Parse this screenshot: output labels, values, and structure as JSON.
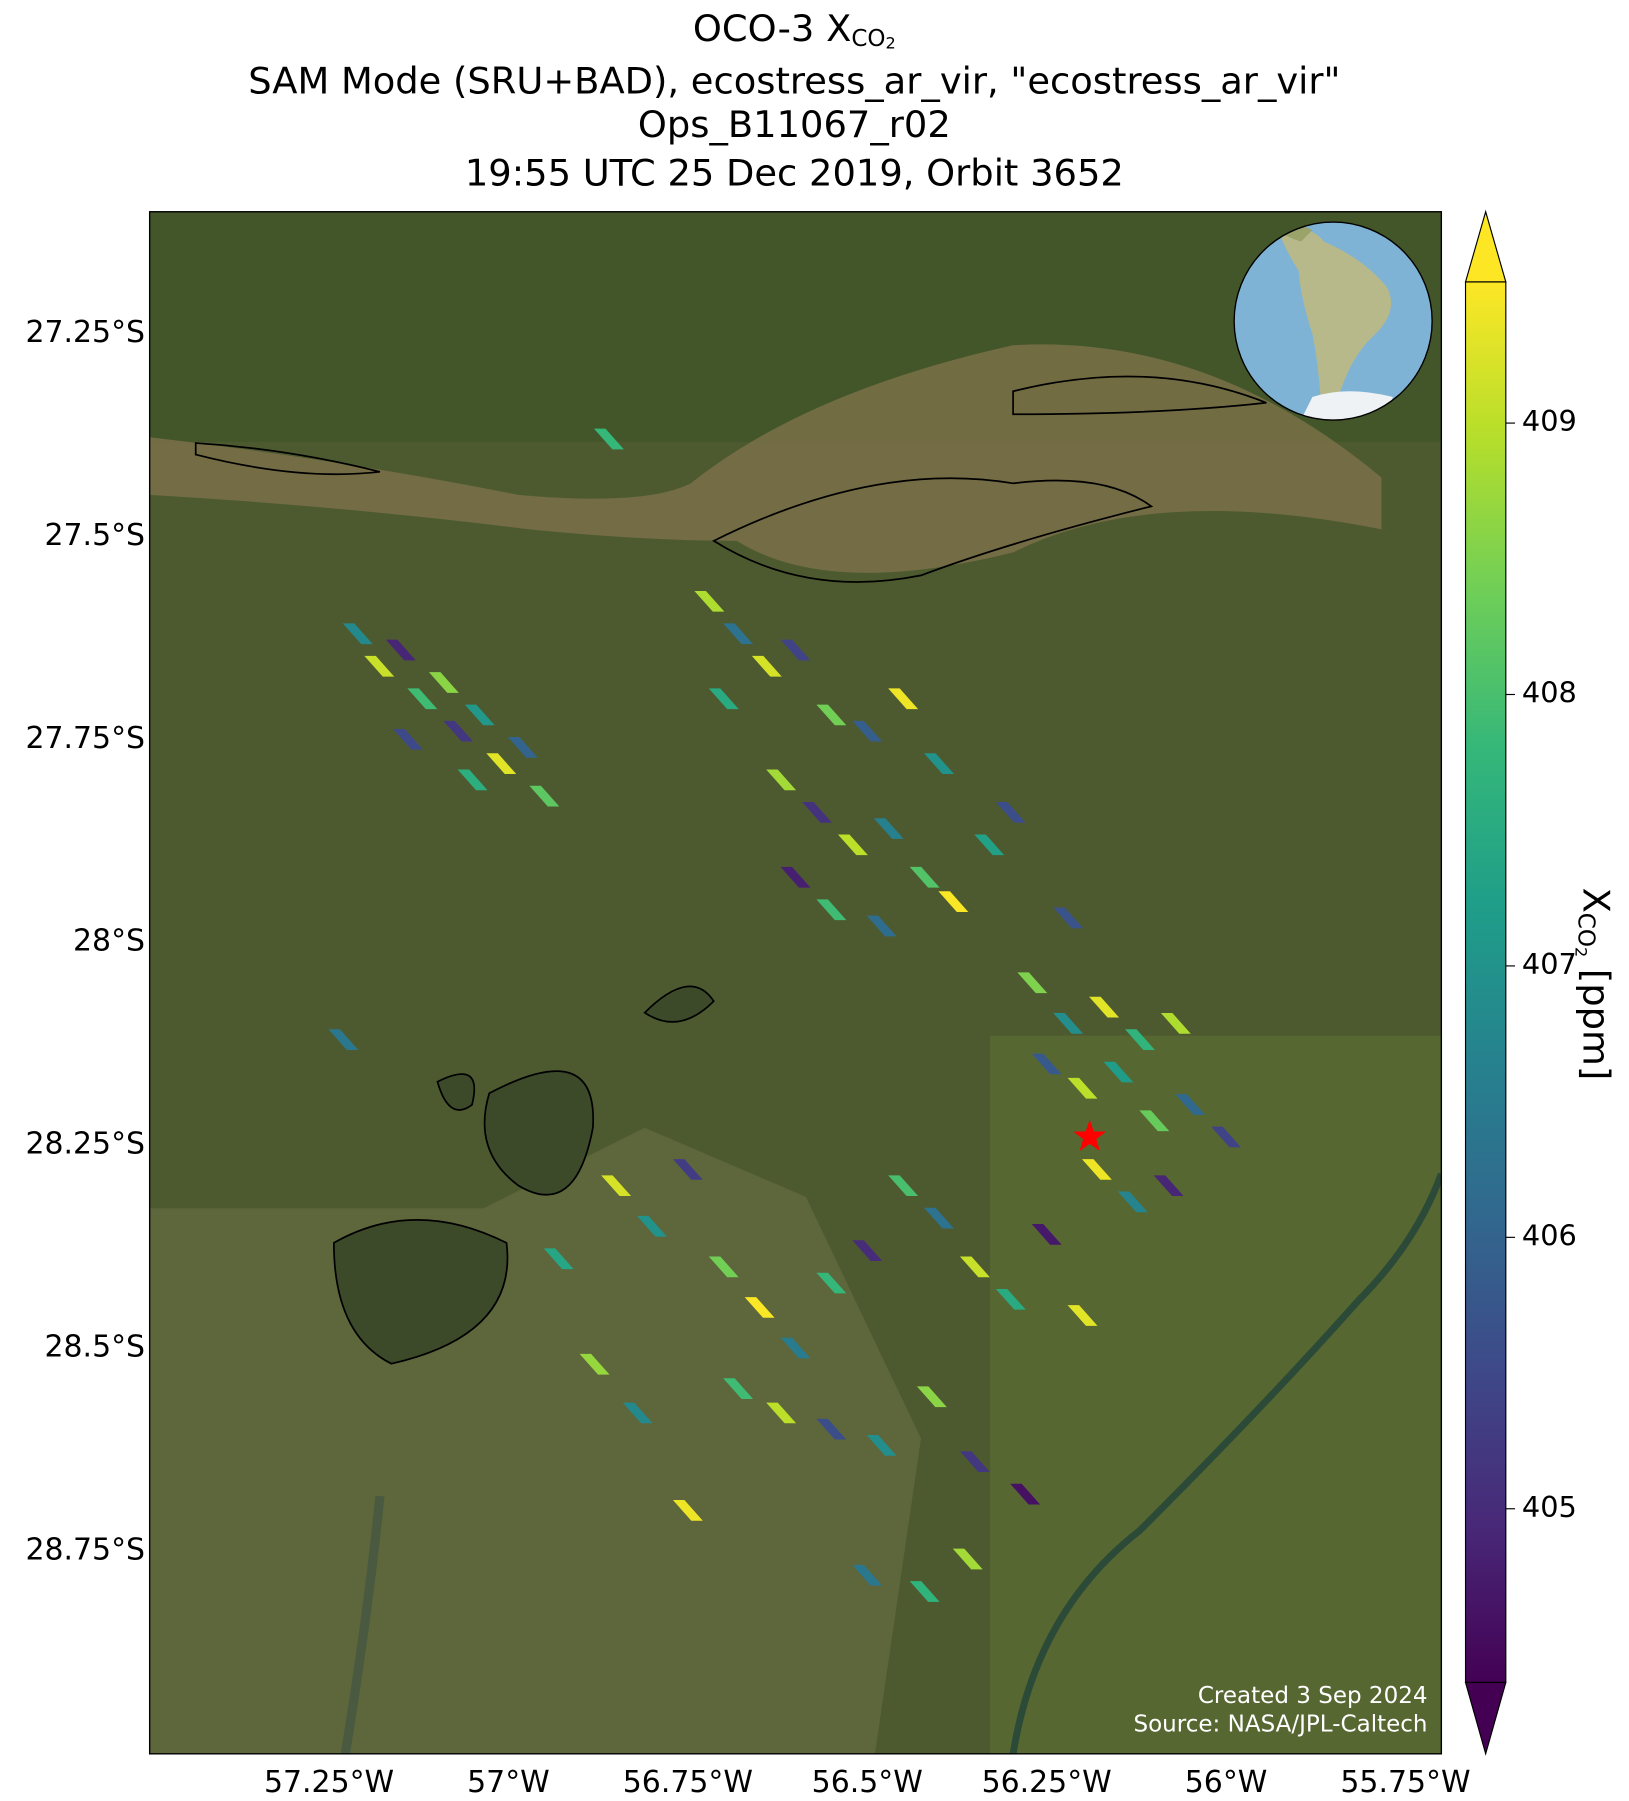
{
  "chart_data": {
    "type": "scatter",
    "title_lines": [
      {
        "text": "OCO-3 X",
        "sub": "CO",
        "subsub": "2"
      },
      "SAM Mode (SRU+BAD), ecostress_ar_vir, \"ecostress_ar_vir\"",
      "Ops_B11067_r02",
      "19:55 UTC 25 Dec 2019, Orbit 3652"
    ],
    "colorbar_label": {
      "text": "X",
      "sub": "CO",
      "subsub": "2",
      "unit": " [ppm]"
    },
    "credits": [
      "Created 3 Sep 2024",
      "Source: NASA/JPL-Caltech"
    ],
    "xlim": [
      -57.5,
      -55.7
    ],
    "ylim": [
      -29.0,
      -27.1
    ],
    "xticks": [
      {
        "value": -57.25,
        "label": "57.25°W"
      },
      {
        "value": -57,
        "label": "57°W"
      },
      {
        "value": -56.75,
        "label": "56.75°W"
      },
      {
        "value": -56.5,
        "label": "56.5°W"
      },
      {
        "value": -56.25,
        "label": "56.25°W"
      },
      {
        "value": -56,
        "label": "56°W"
      },
      {
        "value": -55.75,
        "label": "55.75°W"
      }
    ],
    "yticks": [
      {
        "value": -27.25,
        "label": "27.25°S"
      },
      {
        "value": -27.5,
        "label": "27.5°S"
      },
      {
        "value": -27.75,
        "label": "27.75°S"
      },
      {
        "value": -28,
        "label": "28°S"
      },
      {
        "value": -28.25,
        "label": "28.25°S"
      },
      {
        "value": -28.5,
        "label": "28.5°S"
      },
      {
        "value": -28.75,
        "label": "28.75°S"
      }
    ],
    "clim": [
      404.36,
      409.52
    ],
    "cticks": [
      405,
      406,
      407,
      408,
      409
    ],
    "colormap": "viridis",
    "grid": true,
    "target": {
      "lon": -56.19,
      "lat": -28.24,
      "color": "#ff0000"
    },
    "x": [
      -57.21,
      -57.18,
      -57.15,
      -57.12,
      -57.09,
      -57.07,
      -57.04,
      -57.01,
      -56.98,
      -56.95,
      -57.14,
      -57.05,
      -56.86,
      -57.23,
      -56.93,
      -56.72,
      -56.68,
      -56.64,
      -56.6,
      -56.7,
      -56.55,
      -56.5,
      -56.45,
      -56.4,
      -56.62,
      -56.57,
      -56.52,
      -56.47,
      -56.42,
      -56.6,
      -56.55,
      -56.48,
      -56.38,
      -56.33,
      -56.3,
      -56.27,
      -56.22,
      -56.17,
      -56.12,
      -56.07,
      -56.25,
      -56.2,
      -56.15,
      -56.1,
      -56.05,
      -56.0,
      -56.18,
      -56.13,
      -56.08,
      -56.22,
      -56.85,
      -56.8,
      -56.75,
      -56.7,
      -56.65,
      -56.6,
      -56.55,
      -56.5,
      -56.45,
      -56.4,
      -56.35,
      -56.3,
      -56.25,
      -56.2,
      -56.88,
      -56.82,
      -56.75,
      -56.68,
      -56.62,
      -56.55,
      -56.48,
      -56.41,
      -56.35,
      -56.28,
      -56.5,
      -56.42,
      -56.36
    ],
    "y": [
      -27.62,
      -27.66,
      -27.64,
      -27.7,
      -27.68,
      -27.74,
      -27.72,
      -27.78,
      -27.76,
      -27.82,
      -27.75,
      -27.8,
      -27.38,
      -28.12,
      -28.39,
      -27.58,
      -27.62,
      -27.66,
      -27.64,
      -27.7,
      -27.72,
      -27.74,
      -27.7,
      -27.78,
      -27.8,
      -27.84,
      -27.88,
      -27.86,
      -27.92,
      -27.92,
      -27.96,
      -27.98,
      -27.95,
      -27.88,
      -27.84,
      -28.05,
      -28.1,
      -28.08,
      -28.12,
      -28.1,
      -28.15,
      -28.18,
      -28.16,
      -28.22,
      -28.2,
      -28.24,
      -28.28,
      -28.32,
      -28.3,
      -27.97,
      -28.3,
      -28.35,
      -28.28,
      -28.4,
      -28.45,
      -28.5,
      -28.42,
      -28.38,
      -28.3,
      -28.34,
      -28.4,
      -28.44,
      -28.36,
      -28.46,
      -28.52,
      -28.58,
      -28.7,
      -28.55,
      -28.58,
      -28.6,
      -28.62,
      -28.56,
      -28.64,
      -28.68,
      -28.78,
      -28.8,
      -28.76
    ],
    "values": [
      406.8,
      409.1,
      404.9,
      407.9,
      408.6,
      405.2,
      407.1,
      409.3,
      406.0,
      408.2,
      405.5,
      407.6,
      407.8,
      406.4,
      407.4,
      408.9,
      406.3,
      409.2,
      405.4,
      407.5,
      408.4,
      405.9,
      409.4,
      407.0,
      408.8,
      405.1,
      409.0,
      406.6,
      408.1,
      404.8,
      407.9,
      406.2,
      409.5,
      407.3,
      405.6,
      408.5,
      406.9,
      409.3,
      407.7,
      408.9,
      405.8,
      409.0,
      407.2,
      408.3,
      406.1,
      405.4,
      409.4,
      406.7,
      404.9,
      405.7,
      409.2,
      407.0,
      405.3,
      408.4,
      409.5,
      406.5,
      407.8,
      405.0,
      408.0,
      406.3,
      409.1,
      407.5,
      404.7,
      409.3,
      408.7,
      406.8,
      409.4,
      407.9,
      409.0,
      405.6,
      406.9,
      408.6,
      405.2,
      404.6,
      406.4,
      407.7,
      408.8
    ]
  }
}
